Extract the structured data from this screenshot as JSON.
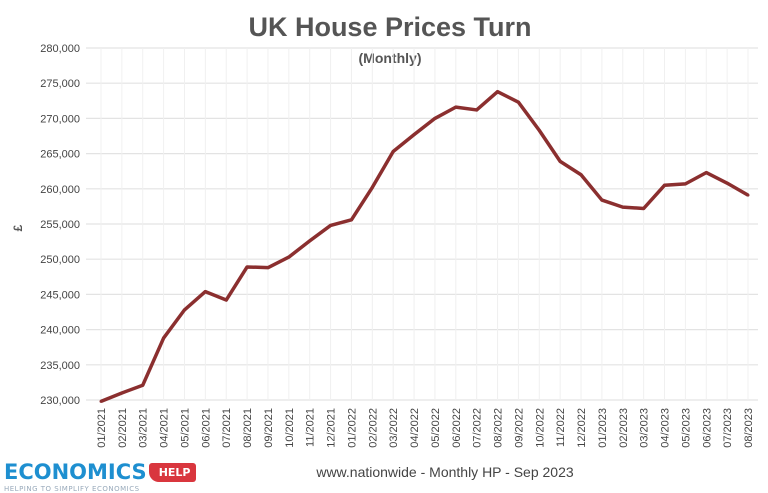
{
  "chart_data": {
    "type": "line",
    "title": "UK House Prices Turn",
    "subtitle": "(Monthly)",
    "ylabel": "£",
    "xlabel": "",
    "source": "www.nationwide - Monthly HP - Sep 2023",
    "ylim": [
      230000,
      280000
    ],
    "yticks": [
      230000,
      235000,
      240000,
      245000,
      250000,
      255000,
      260000,
      265000,
      270000,
      275000,
      280000
    ],
    "ytick_labels": [
      "230,000",
      "235,000",
      "240,000",
      "245,000",
      "250,000",
      "255,000",
      "260,000",
      "265,000",
      "270,000",
      "275,000",
      "280,000"
    ],
    "grid": true,
    "line_color": "#8b2f2f",
    "categories": [
      "01/2021",
      "02/2021",
      "03/2021",
      "04/2021",
      "05/2021",
      "06/2021",
      "07/2021",
      "08/2021",
      "09/2021",
      "10/2021",
      "11/2021",
      "12/2021",
      "01/2022",
      "02/2022",
      "03/2022",
      "04/2022",
      "05/2022",
      "06/2022",
      "07/2022",
      "08/2022",
      "09/2022",
      "10/2022",
      "11/2022",
      "12/2022",
      "01/2023",
      "02/2023",
      "03/2023",
      "04/2023",
      "05/2023",
      "06/2023",
      "07/2023",
      "08/2023"
    ],
    "values": [
      229800,
      231000,
      232100,
      238800,
      242800,
      245400,
      244200,
      248900,
      248800,
      250300,
      252600,
      254800,
      255600,
      260200,
      265300,
      267700,
      270000,
      271600,
      271200,
      273800,
      272300,
      268300,
      263900,
      262000,
      258400,
      257400,
      257200,
      260500,
      260700,
      262300,
      260800,
      259100
    ]
  },
  "logo": {
    "name": "ECONOMICS",
    "tag": "HELP",
    "tagline": "HELPING TO SIMPLIFY ECONOMICS",
    "brand_color": "#1e8fd0",
    "tag_color": "#d9363e"
  }
}
